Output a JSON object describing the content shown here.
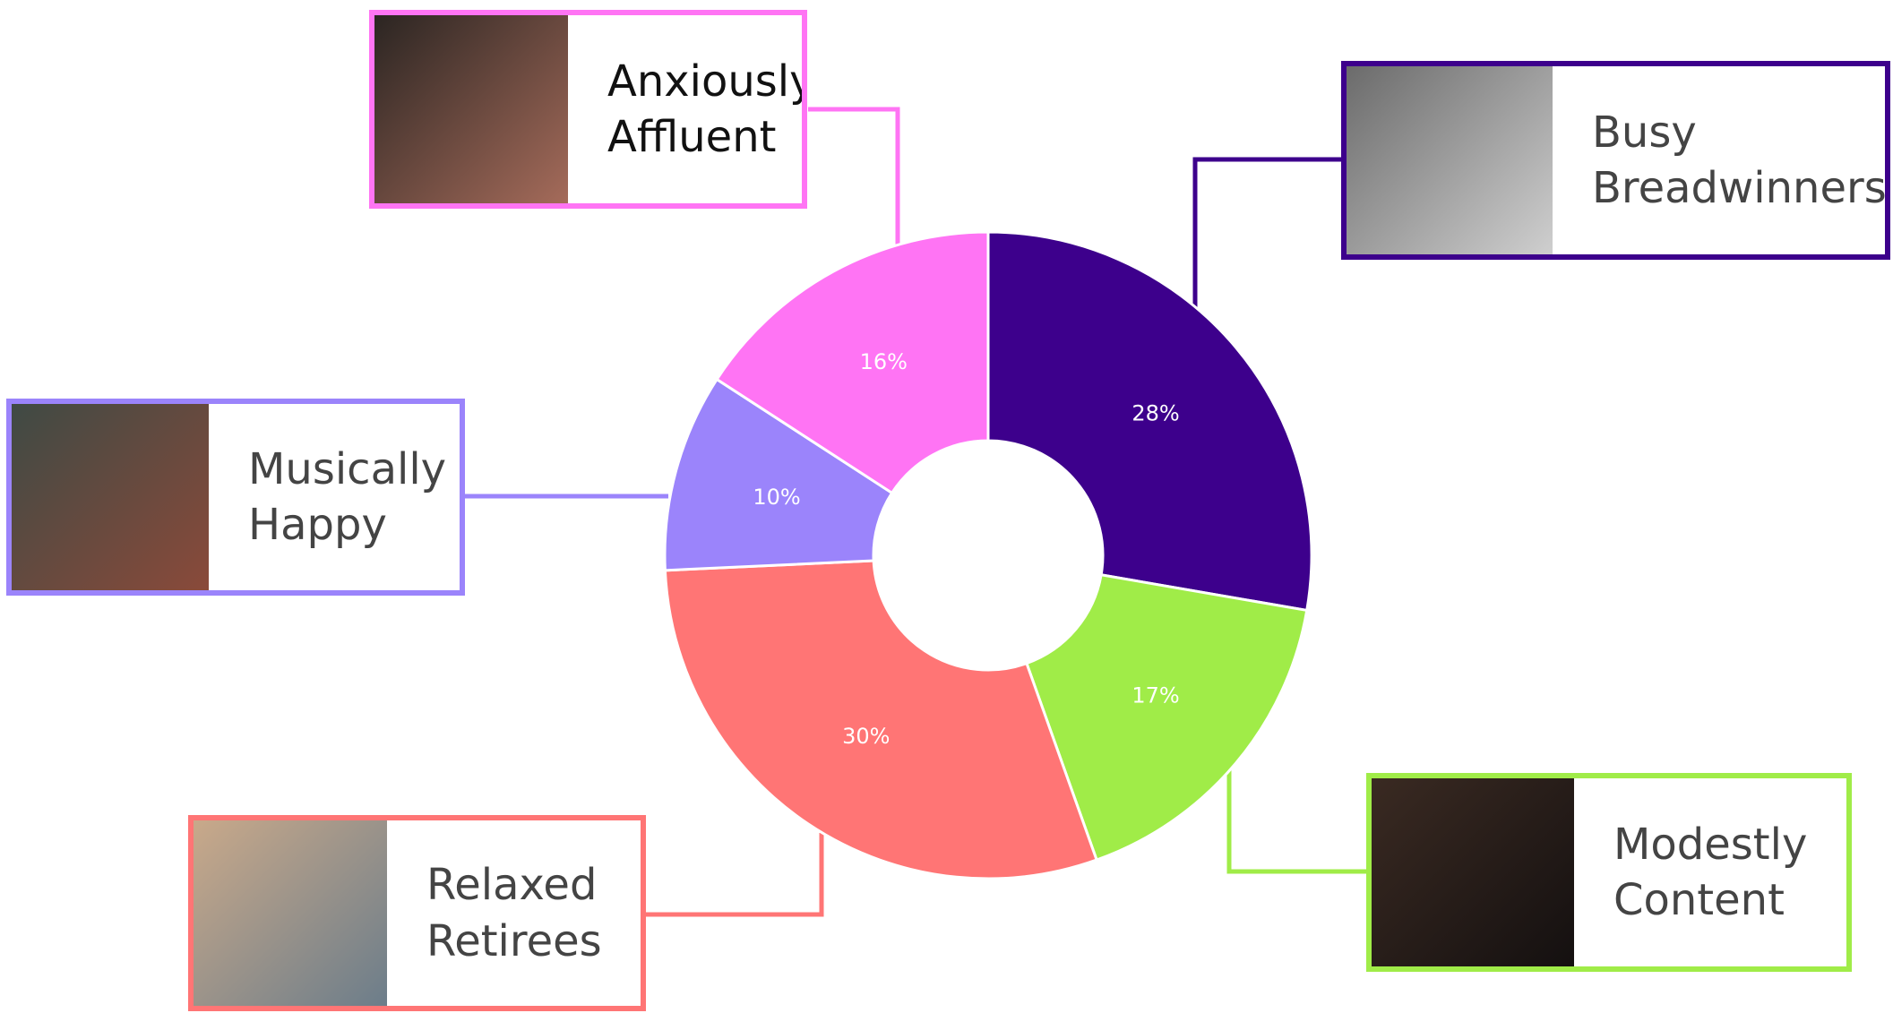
{
  "chart_data": {
    "type": "pie",
    "donut": true,
    "categories": [
      "Busy Breadwinners",
      "Modestly Content",
      "Relaxed Retirees",
      "Musically Happy",
      "Anxiously Affluent"
    ],
    "values": [
      28,
      17,
      30,
      10,
      16
    ],
    "value_labels": [
      "28%",
      "17%",
      "30%",
      "10%",
      "16%"
    ],
    "colors": [
      "#3d008c",
      "#a0ec48",
      "#ff7575",
      "#9b84fb",
      "#ff74f4"
    ]
  }
}
